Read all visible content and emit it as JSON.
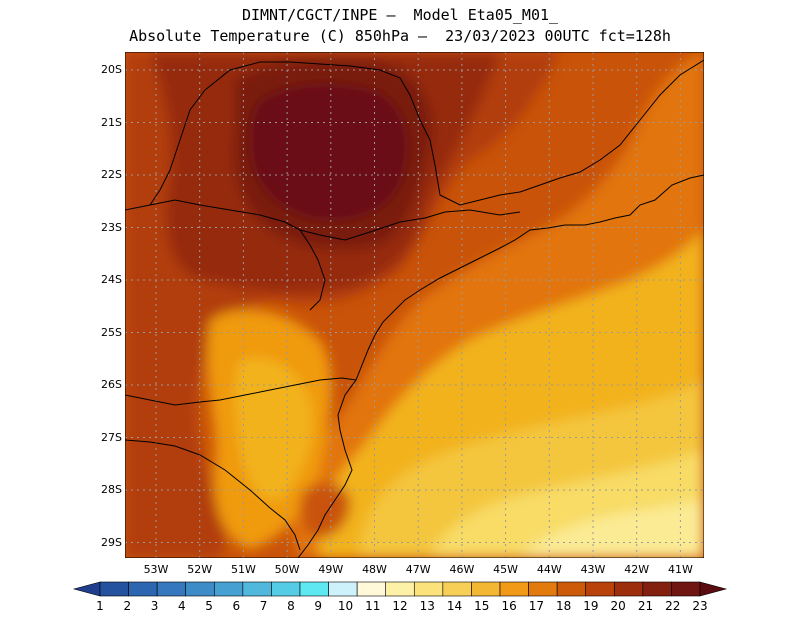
{
  "header": {
    "line1": "DIMNT/CGCT/INPE –  Model Eta05_M01_",
    "line2": "Absolute Temperature (C) 850hPa –  23/03/2023 00UTC fct=128h"
  },
  "map": {
    "lat_labels": [
      "20S",
      "21S",
      "22S",
      "23S",
      "24S",
      "25S",
      "26S",
      "27S",
      "28S",
      "29S"
    ],
    "lon_labels": [
      "53W",
      "52W",
      "51W",
      "50W",
      "49W",
      "48W",
      "47W",
      "46W",
      "45W",
      "44W",
      "43W",
      "42W",
      "41W"
    ],
    "colors": {
      "t23": "#6b0f14",
      "t21": "#7a1c10",
      "t20": "#962a0b",
      "t19": "#b23d07",
      "t18": "#c95309",
      "t17": "#e2750f",
      "t16": "#f09a0a",
      "t15": "#f2b21c",
      "t14": "#f4c63c",
      "t13": "#f8dc66",
      "t12": "#fbeb94",
      "t11": "#fdf6c4",
      "coast": "#000000",
      "grid": "#9a9a9a"
    }
  },
  "colorbar": {
    "labels": [
      "1",
      "2",
      "3",
      "4",
      "5",
      "6",
      "7",
      "8",
      "9",
      "10",
      "11",
      "12",
      "13",
      "14",
      "15",
      "16",
      "17",
      "18",
      "19",
      "20",
      "21",
      "22",
      "23"
    ],
    "colors": [
      "#1f3f8e",
      "#24529e",
      "#2c66b0",
      "#3578bd",
      "#3d8cc8",
      "#46a0d2",
      "#4fb8dc",
      "#54cce6",
      "#5ee8f2",
      "#cdf2fb",
      "#fff8d9",
      "#fdf1a8",
      "#fbe27a",
      "#f8cf56",
      "#f4b733",
      "#f19a18",
      "#e27a0d",
      "#cc5a08",
      "#b8420a",
      "#9c2e0c",
      "#84200f",
      "#701612",
      "#5a0c10"
    ]
  }
}
